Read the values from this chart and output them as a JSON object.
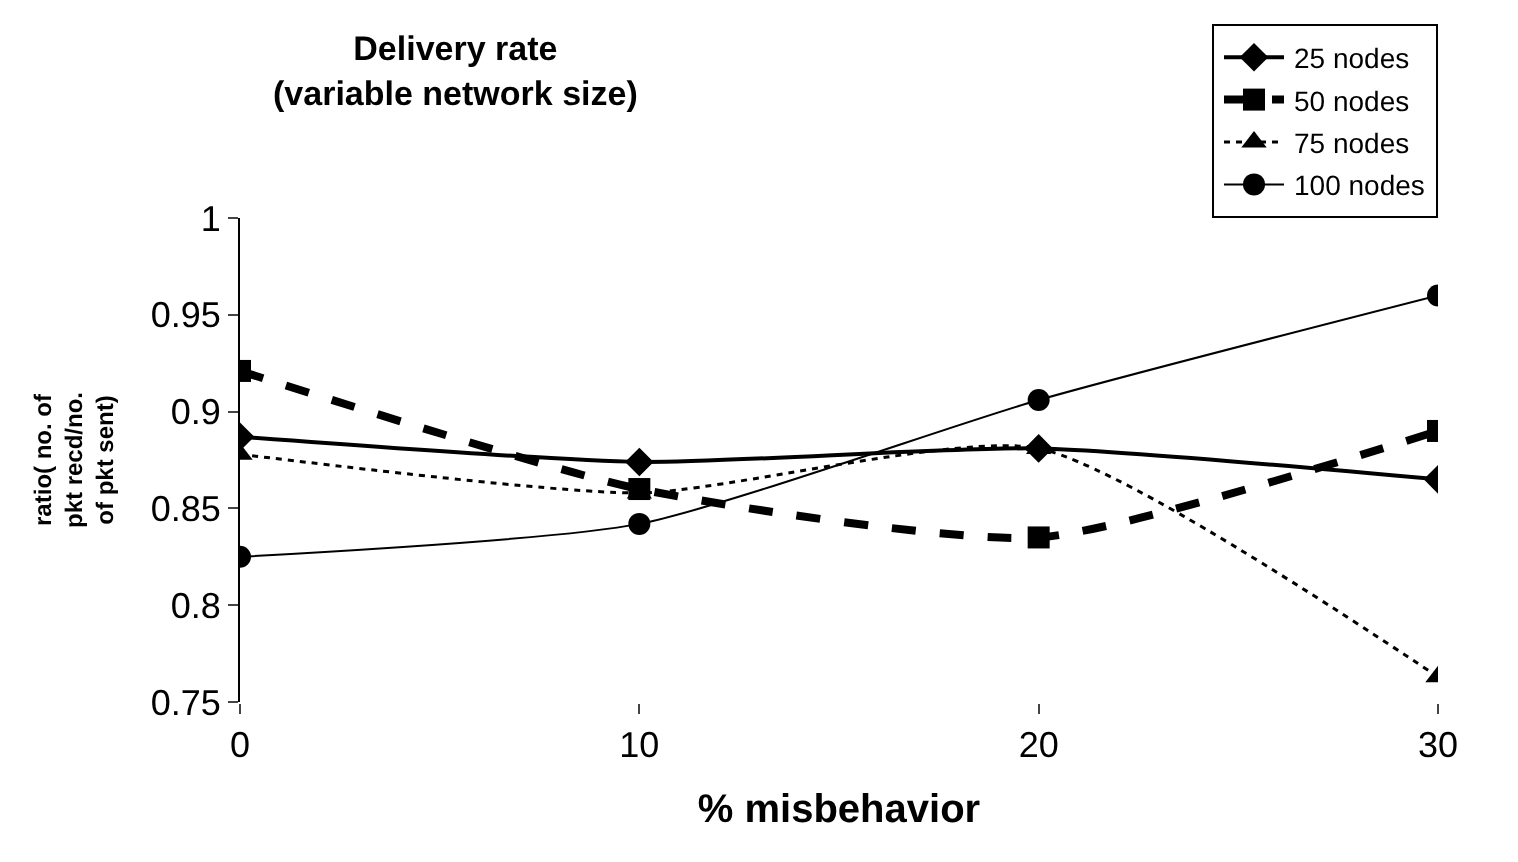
{
  "chart_data": {
    "type": "line",
    "title": "Delivery rate\n(variable network size)",
    "xlabel": "% misbehavior",
    "ylabel": "ratio( no. of\npkt recd/no.\nof pkt sent)",
    "x": [
      0,
      10,
      20,
      30
    ],
    "xlim": [
      0,
      30
    ],
    "xticks": [
      0,
      10,
      20,
      30
    ],
    "ylim": [
      0.75,
      1
    ],
    "yticks": [
      0.75,
      0.8,
      0.85,
      0.9,
      0.95,
      1
    ],
    "legend": "top right",
    "series": [
      {
        "name": "25 nodes",
        "color": "#000000",
        "marker": "diamond",
        "line_style": "solid",
        "values": [
          0.887,
          0.874,
          0.881,
          0.865
        ]
      },
      {
        "name": "50 nodes",
        "color": "#000000",
        "marker": "square",
        "line_style": "dashed",
        "values": [
          0.921,
          0.86,
          0.835,
          0.89
        ]
      },
      {
        "name": "75 nodes",
        "color": "#000000",
        "marker": "triangle",
        "line_style": "dotted",
        "values": [
          0.878,
          0.858,
          0.881,
          0.763
        ]
      },
      {
        "name": "100 nodes",
        "color": "#000000",
        "marker": "circle",
        "line_style": "solid",
        "values": [
          0.825,
          0.842,
          0.906,
          0.96
        ]
      }
    ]
  }
}
